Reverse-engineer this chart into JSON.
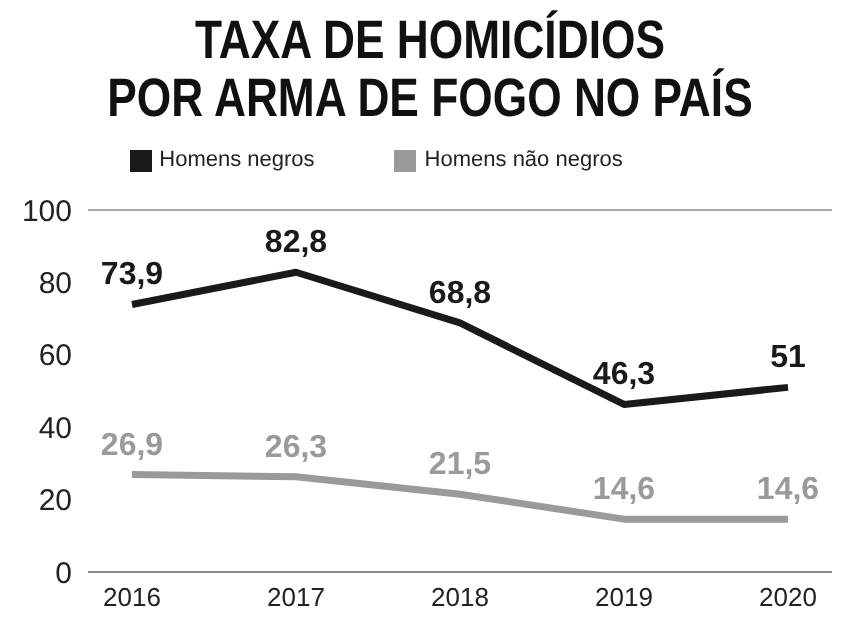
{
  "chart_data": {
    "type": "line",
    "title": "TAXA DE HOMICÍDIOS\nPOR ARMA DE FOGO NO PAÍS",
    "categories": [
      "2016",
      "2017",
      "2018",
      "2019",
      "2020"
    ],
    "series": [
      {
        "name": "Homens negros",
        "color": "#1a1a1a",
        "values": [
          73.9,
          82.8,
          68.8,
          46.3,
          51
        ],
        "value_labels": [
          "73,9",
          "82,8",
          "68,8",
          "46,3",
          "51"
        ]
      },
      {
        "name": "Homens não negros",
        "color": "#9a9a9a",
        "values": [
          26.9,
          26.3,
          21.5,
          14.6,
          14.6
        ],
        "value_labels": [
          "26,9",
          "26,3",
          "21,5",
          "14,6",
          "14,6"
        ]
      }
    ],
    "ylim": [
      0,
      100
    ],
    "yticks": [
      0,
      20,
      40,
      60,
      80,
      100
    ],
    "legend": "top",
    "marker": "none",
    "line_style": "solid"
  }
}
